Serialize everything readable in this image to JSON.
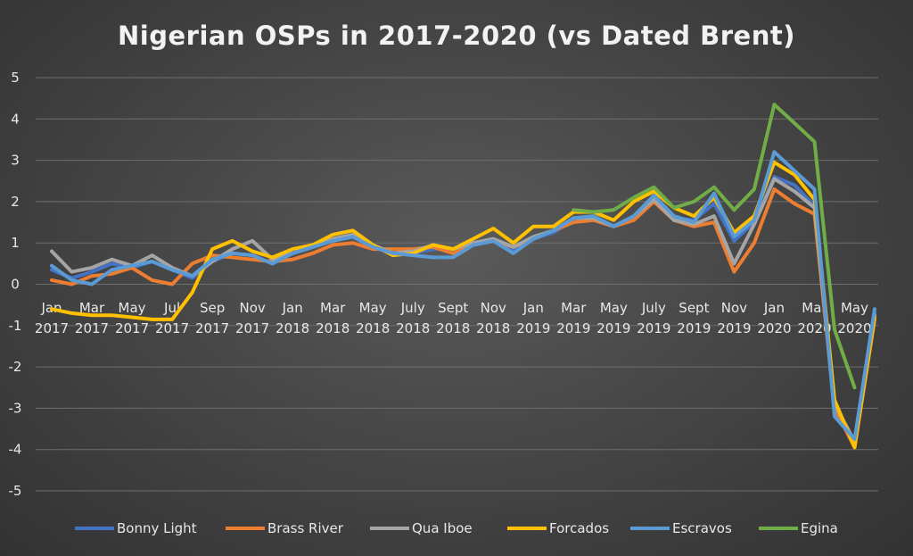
{
  "chart_data": {
    "type": "line",
    "title": "Nigerian OSPs in 2017-2020 (vs Dated Brent)",
    "xlabel": "",
    "ylabel": "",
    "ylim": [
      -5,
      5
    ],
    "yticks": [
      "5",
      "4",
      "3",
      "2",
      "1",
      "0",
      "-1",
      "-2",
      "-3",
      "-4",
      "-5"
    ],
    "grid": true,
    "legend_position": "bottom",
    "x": [
      "Jan 2017",
      "Feb 2017",
      "Mar 2017",
      "Apr 2017",
      "May 2017",
      "Jun 2017",
      "Jul 2017",
      "Aug 2017",
      "Sep 2017",
      "Oct 2017",
      "Nov 2017",
      "Dec 2017",
      "Jan 2018",
      "Feb 2018",
      "Mar 2018",
      "Apr 2018",
      "May 2018",
      "Jun 2018",
      "July 2018",
      "Aug 2018",
      "Sept 2018",
      "Oct 2018",
      "Nov 2018",
      "Dec 2018",
      "Jan 2019",
      "Feb 2019",
      "Mar 2019",
      "Apr 2019",
      "May 2019",
      "Jun 2019",
      "July 2019",
      "Aug 2019",
      "Sept 2019",
      "Oct 2019",
      "Nov 2019",
      "Dec 2019",
      "Jan 2020",
      "Feb 2020",
      "Mar 2020",
      "Apr 2020",
      "May 2020",
      "Jun 2020"
    ],
    "xtick_labels": [
      {
        "i": 0,
        "top": "Jan",
        "bottom": "2017"
      },
      {
        "i": 2,
        "top": "Mar",
        "bottom": "2017"
      },
      {
        "i": 4,
        "top": "May",
        "bottom": "2017"
      },
      {
        "i": 6,
        "top": "Jul",
        "bottom": "2017"
      },
      {
        "i": 8,
        "top": "Sep",
        "bottom": "2017"
      },
      {
        "i": 10,
        "top": "Nov",
        "bottom": "2017"
      },
      {
        "i": 12,
        "top": "Jan",
        "bottom": "2018"
      },
      {
        "i": 14,
        "top": "Mar",
        "bottom": "2018"
      },
      {
        "i": 16,
        "top": "May",
        "bottom": "2018"
      },
      {
        "i": 18,
        "top": "July",
        "bottom": "2018"
      },
      {
        "i": 20,
        "top": "Sept",
        "bottom": "2018"
      },
      {
        "i": 22,
        "top": "Nov",
        "bottom": "2018"
      },
      {
        "i": 24,
        "top": "Jan",
        "bottom": "2019"
      },
      {
        "i": 26,
        "top": "Mar",
        "bottom": "2019"
      },
      {
        "i": 28,
        "top": "May",
        "bottom": "2019"
      },
      {
        "i": 30,
        "top": "July",
        "bottom": "2019"
      },
      {
        "i": 32,
        "top": "Sept",
        "bottom": "2019"
      },
      {
        "i": 34,
        "top": "Nov",
        "bottom": "2019"
      },
      {
        "i": 36,
        "top": "Jan",
        "bottom": "2020"
      },
      {
        "i": 38,
        "top": "Mar",
        "bottom": "2020"
      },
      {
        "i": 40,
        "top": "May",
        "bottom": "2020"
      }
    ],
    "series": [
      {
        "name": "Bonny Light",
        "color": "#4472c4",
        "values": [
          0.35,
          0.15,
          0.3,
          0.5,
          0.4,
          0.55,
          0.35,
          0.15,
          0.55,
          0.75,
          0.7,
          0.5,
          0.75,
          0.9,
          1.05,
          1.15,
          0.9,
          0.75,
          0.75,
          0.85,
          0.85,
          0.95,
          1.05,
          0.8,
          1.1,
          1.25,
          1.55,
          1.65,
          1.4,
          1.6,
          2.1,
          1.6,
          1.55,
          1.95,
          1.05,
          1.5,
          2.6,
          2.4,
          1.9,
          -2.9,
          -3.85,
          -0.7
        ]
      },
      {
        "name": "Brass River",
        "color": "#ed7d31",
        "values": [
          0.1,
          0.0,
          0.2,
          0.25,
          0.4,
          0.1,
          0.0,
          0.5,
          0.7,
          0.65,
          0.6,
          0.55,
          0.6,
          0.75,
          0.95,
          1.0,
          0.85,
          0.85,
          0.85,
          0.9,
          0.75,
          0.95,
          1.05,
          0.9,
          1.1,
          1.3,
          1.5,
          1.55,
          1.4,
          1.55,
          2.0,
          1.55,
          1.4,
          1.5,
          0.3,
          1.0,
          2.3,
          1.95,
          1.7,
          -3.0,
          -3.95,
          -0.85
        ]
      },
      {
        "name": "Qua Iboe",
        "color": "#a5a5a5",
        "values": [
          0.8,
          0.3,
          0.4,
          0.6,
          0.45,
          0.7,
          0.4,
          0.2,
          0.55,
          0.85,
          1.05,
          0.6,
          0.75,
          0.9,
          1.1,
          1.2,
          0.95,
          0.75,
          0.8,
          0.95,
          0.85,
          1.0,
          1.1,
          0.9,
          1.15,
          1.3,
          1.6,
          1.6,
          1.4,
          1.65,
          2.05,
          1.55,
          1.45,
          1.65,
          0.5,
          1.45,
          2.55,
          2.25,
          1.85,
          -2.9,
          -3.8,
          -0.75
        ]
      },
      {
        "name": "Forcados",
        "color": "#ffc000",
        "values": [
          -0.6,
          -0.7,
          -0.75,
          -0.75,
          -0.8,
          -0.85,
          -0.85,
          -0.2,
          0.85,
          1.05,
          0.8,
          0.65,
          0.85,
          0.95,
          1.2,
          1.3,
          0.95,
          0.7,
          0.75,
          0.95,
          0.85,
          1.1,
          1.35,
          1.0,
          1.4,
          1.4,
          1.75,
          1.75,
          1.55,
          2.0,
          2.25,
          1.85,
          1.65,
          2.1,
          1.25,
          1.65,
          2.95,
          2.65,
          2.05,
          -2.8,
          -3.95,
          -0.8
        ]
      },
      {
        "name": "Escravos",
        "color": "#5b9bd5",
        "values": [
          0.45,
          0.1,
          0.0,
          0.35,
          0.45,
          0.55,
          0.35,
          0.2,
          0.6,
          0.75,
          0.7,
          0.5,
          0.75,
          0.9,
          1.05,
          1.15,
          0.9,
          0.75,
          0.7,
          0.65,
          0.65,
          0.95,
          1.05,
          0.75,
          1.1,
          1.3,
          1.6,
          1.65,
          1.4,
          1.65,
          2.15,
          1.65,
          1.5,
          2.2,
          1.15,
          1.55,
          3.2,
          2.75,
          2.3,
          -3.2,
          -3.75,
          -0.6
        ]
      },
      {
        "name": "Egina",
        "color": "#70ad47",
        "values": [
          null,
          null,
          null,
          null,
          null,
          null,
          null,
          null,
          null,
          null,
          null,
          null,
          null,
          null,
          null,
          null,
          null,
          null,
          null,
          null,
          null,
          null,
          null,
          null,
          null,
          null,
          1.8,
          1.75,
          1.8,
          2.1,
          2.35,
          1.85,
          2.0,
          2.35,
          1.8,
          2.3,
          4.35,
          3.9,
          3.45,
          -1.1,
          -2.5,
          null
        ]
      }
    ]
  }
}
